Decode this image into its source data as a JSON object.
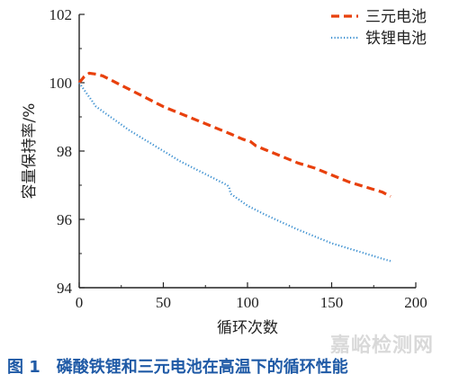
{
  "chart_data": {
    "type": "line",
    "xlabel": "循环次数",
    "ylabel": "容量保持率/%",
    "xlim": [
      0,
      200
    ],
    "ylim": [
      94,
      102
    ],
    "xticks": [
      0,
      50,
      100,
      150,
      200
    ],
    "yticks": [
      94,
      96,
      98,
      100,
      102
    ],
    "grid": false,
    "legend_position": "top-right",
    "series": [
      {
        "name": "三元电池",
        "color": "#e8400c",
        "style": "dashed",
        "x": [
          0,
          3,
          6,
          10,
          14,
          20,
          30,
          40,
          50,
          60,
          70,
          80,
          90,
          97,
          100,
          102,
          105,
          110,
          120,
          130,
          140,
          150,
          160,
          170,
          180,
          185
        ],
        "y": [
          100.0,
          100.18,
          100.28,
          100.25,
          100.2,
          100.05,
          99.8,
          99.55,
          99.3,
          99.1,
          98.9,
          98.7,
          98.5,
          98.35,
          98.3,
          98.27,
          98.15,
          98.05,
          97.85,
          97.65,
          97.5,
          97.3,
          97.1,
          96.95,
          96.8,
          96.67
        ]
      },
      {
        "name": "铁锂电池",
        "color": "#3a8fd0",
        "style": "dotted",
        "x": [
          0,
          5,
          10,
          20,
          30,
          40,
          50,
          60,
          70,
          80,
          88,
          89,
          90,
          100,
          110,
          120,
          130,
          140,
          150,
          160,
          170,
          180,
          185
        ],
        "y": [
          100.0,
          99.65,
          99.3,
          98.95,
          98.6,
          98.3,
          98.0,
          97.7,
          97.45,
          97.2,
          97.0,
          96.95,
          96.75,
          96.4,
          96.15,
          95.92,
          95.7,
          95.5,
          95.3,
          95.15,
          95.0,
          94.85,
          94.78
        ]
      }
    ]
  },
  "caption": {
    "figure_label": "图 1",
    "text": "磷酸铁锂和三元电池在高温下的循环性能"
  },
  "watermark": "嘉峪检测网"
}
